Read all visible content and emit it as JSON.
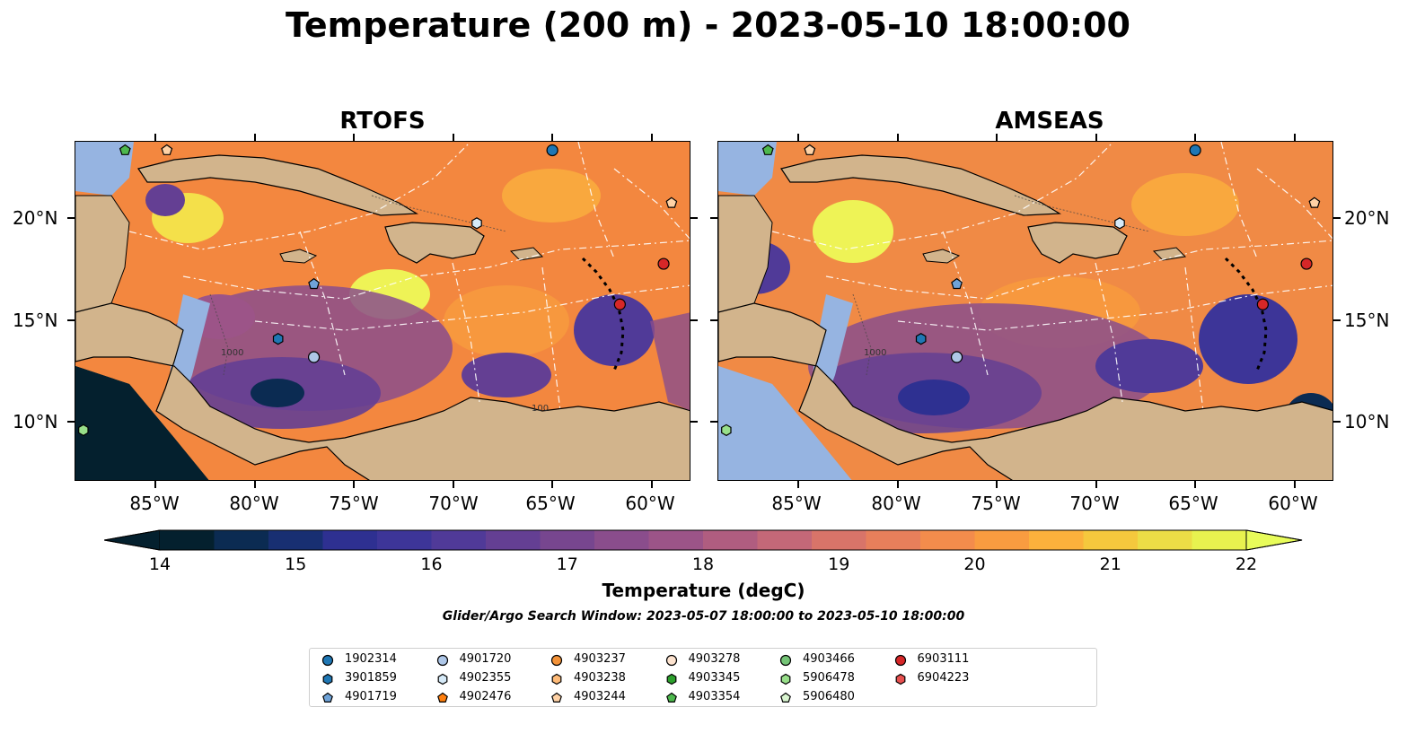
{
  "title": "Temperature (200 m) - 2023-05-10 18:00:00",
  "panels": [
    {
      "title": "RTOFS"
    },
    {
      "title": "AMSEAS"
    }
  ],
  "lat_labels": [
    "20°N",
    "15°N",
    "10°N"
  ],
  "lon_labels_left": [
    "85°W",
    "80°W",
    "75°W",
    "70°W",
    "65°W",
    "60°W"
  ],
  "lon_labels_right": [
    "85°W",
    "80°W",
    "75°W",
    "70°W",
    "65°W",
    "60°W"
  ],
  "contour_labels": [
    "100",
    "1000"
  ],
  "colorbar": {
    "label": "Temperature (degC)",
    "ticks": [
      "14",
      "15",
      "16",
      "17",
      "18",
      "19",
      "20",
      "21",
      "22"
    ],
    "colors": [
      "#04202e",
      "#0b2b52",
      "#182f72",
      "#2e3091",
      "#3d3598",
      "#503a98",
      "#643f93",
      "#77468f",
      "#8a4d8c",
      "#9c5488",
      "#b05d80",
      "#c46878",
      "#d87469",
      "#e77f5b",
      "#f38c4c",
      "#f99c40",
      "#fbb13c",
      "#f5c83d",
      "#ecdd46",
      "#e8f24f"
    ],
    "under_color": "#04202e",
    "over_color": "#e8fc5a"
  },
  "search_window": "Glider/Argo Search Window: 2023-05-07 18:00:00 to 2023-05-10 18:00:00",
  "legend": [
    {
      "id": "1902314",
      "marker": "circle",
      "color": "#1f77b4"
    },
    {
      "id": "3901859",
      "marker": "hexagon",
      "color": "#1f77b4"
    },
    {
      "id": "4901719",
      "marker": "pentagon",
      "color": "#6fa3d8"
    },
    {
      "id": "4901720",
      "marker": "circle",
      "color": "#aec7e8"
    },
    {
      "id": "4902355",
      "marker": "hexagon",
      "color": "#d6eaf8"
    },
    {
      "id": "4902476",
      "marker": "pentagon",
      "color": "#ff7f0e"
    },
    {
      "id": "4903237",
      "marker": "circle",
      "color": "#f39238"
    },
    {
      "id": "4903238",
      "marker": "hexagon",
      "color": "#ffbb78"
    },
    {
      "id": "4903244",
      "marker": "pentagon",
      "color": "#ffd2a6"
    },
    {
      "id": "4903278",
      "marker": "circle",
      "color": "#fde3cf"
    },
    {
      "id": "4903345",
      "marker": "hexagon",
      "color": "#2ca02c"
    },
    {
      "id": "4903354",
      "marker": "pentagon",
      "color": "#4db84d"
    },
    {
      "id": "4903466",
      "marker": "circle",
      "color": "#74c476"
    },
    {
      "id": "5906478",
      "marker": "hexagon",
      "color": "#98df8a"
    },
    {
      "id": "5906480",
      "marker": "pentagon",
      "color": "#d9f5d0"
    },
    {
      "id": "6903111",
      "marker": "circle",
      "color": "#d62728"
    },
    {
      "id": "6904223",
      "marker": "hexagon",
      "color": "#e8504f"
    }
  ],
  "floats_on_map": [
    {
      "id": "4903354",
      "lon": -86.5,
      "lat": 23.4
    },
    {
      "id": "4903244",
      "lon": -84.4,
      "lat": 23.4
    },
    {
      "id": "1902314",
      "lon": -65.0,
      "lat": 23.4
    },
    {
      "id": "4903244",
      "lon": -59.0,
      "lat": 20.8
    },
    {
      "id": "4902355",
      "lon": -68.8,
      "lat": 19.8
    },
    {
      "id": "6903111",
      "lon": -59.4,
      "lat": 17.8
    },
    {
      "id": "4901719",
      "lon": -77.0,
      "lat": 16.8
    },
    {
      "id": "6903111",
      "lon": -61.6,
      "lat": 15.8
    },
    {
      "id": "3901859",
      "lon": -78.8,
      "lat": 14.1
    },
    {
      "id": "4901720",
      "lon": -77.0,
      "lat": 13.2
    },
    {
      "id": "5906478",
      "lon": -88.6,
      "lat": 9.6
    }
  ],
  "colors": {
    "land": "#d2b48c",
    "shelf": "#96b4e1"
  }
}
